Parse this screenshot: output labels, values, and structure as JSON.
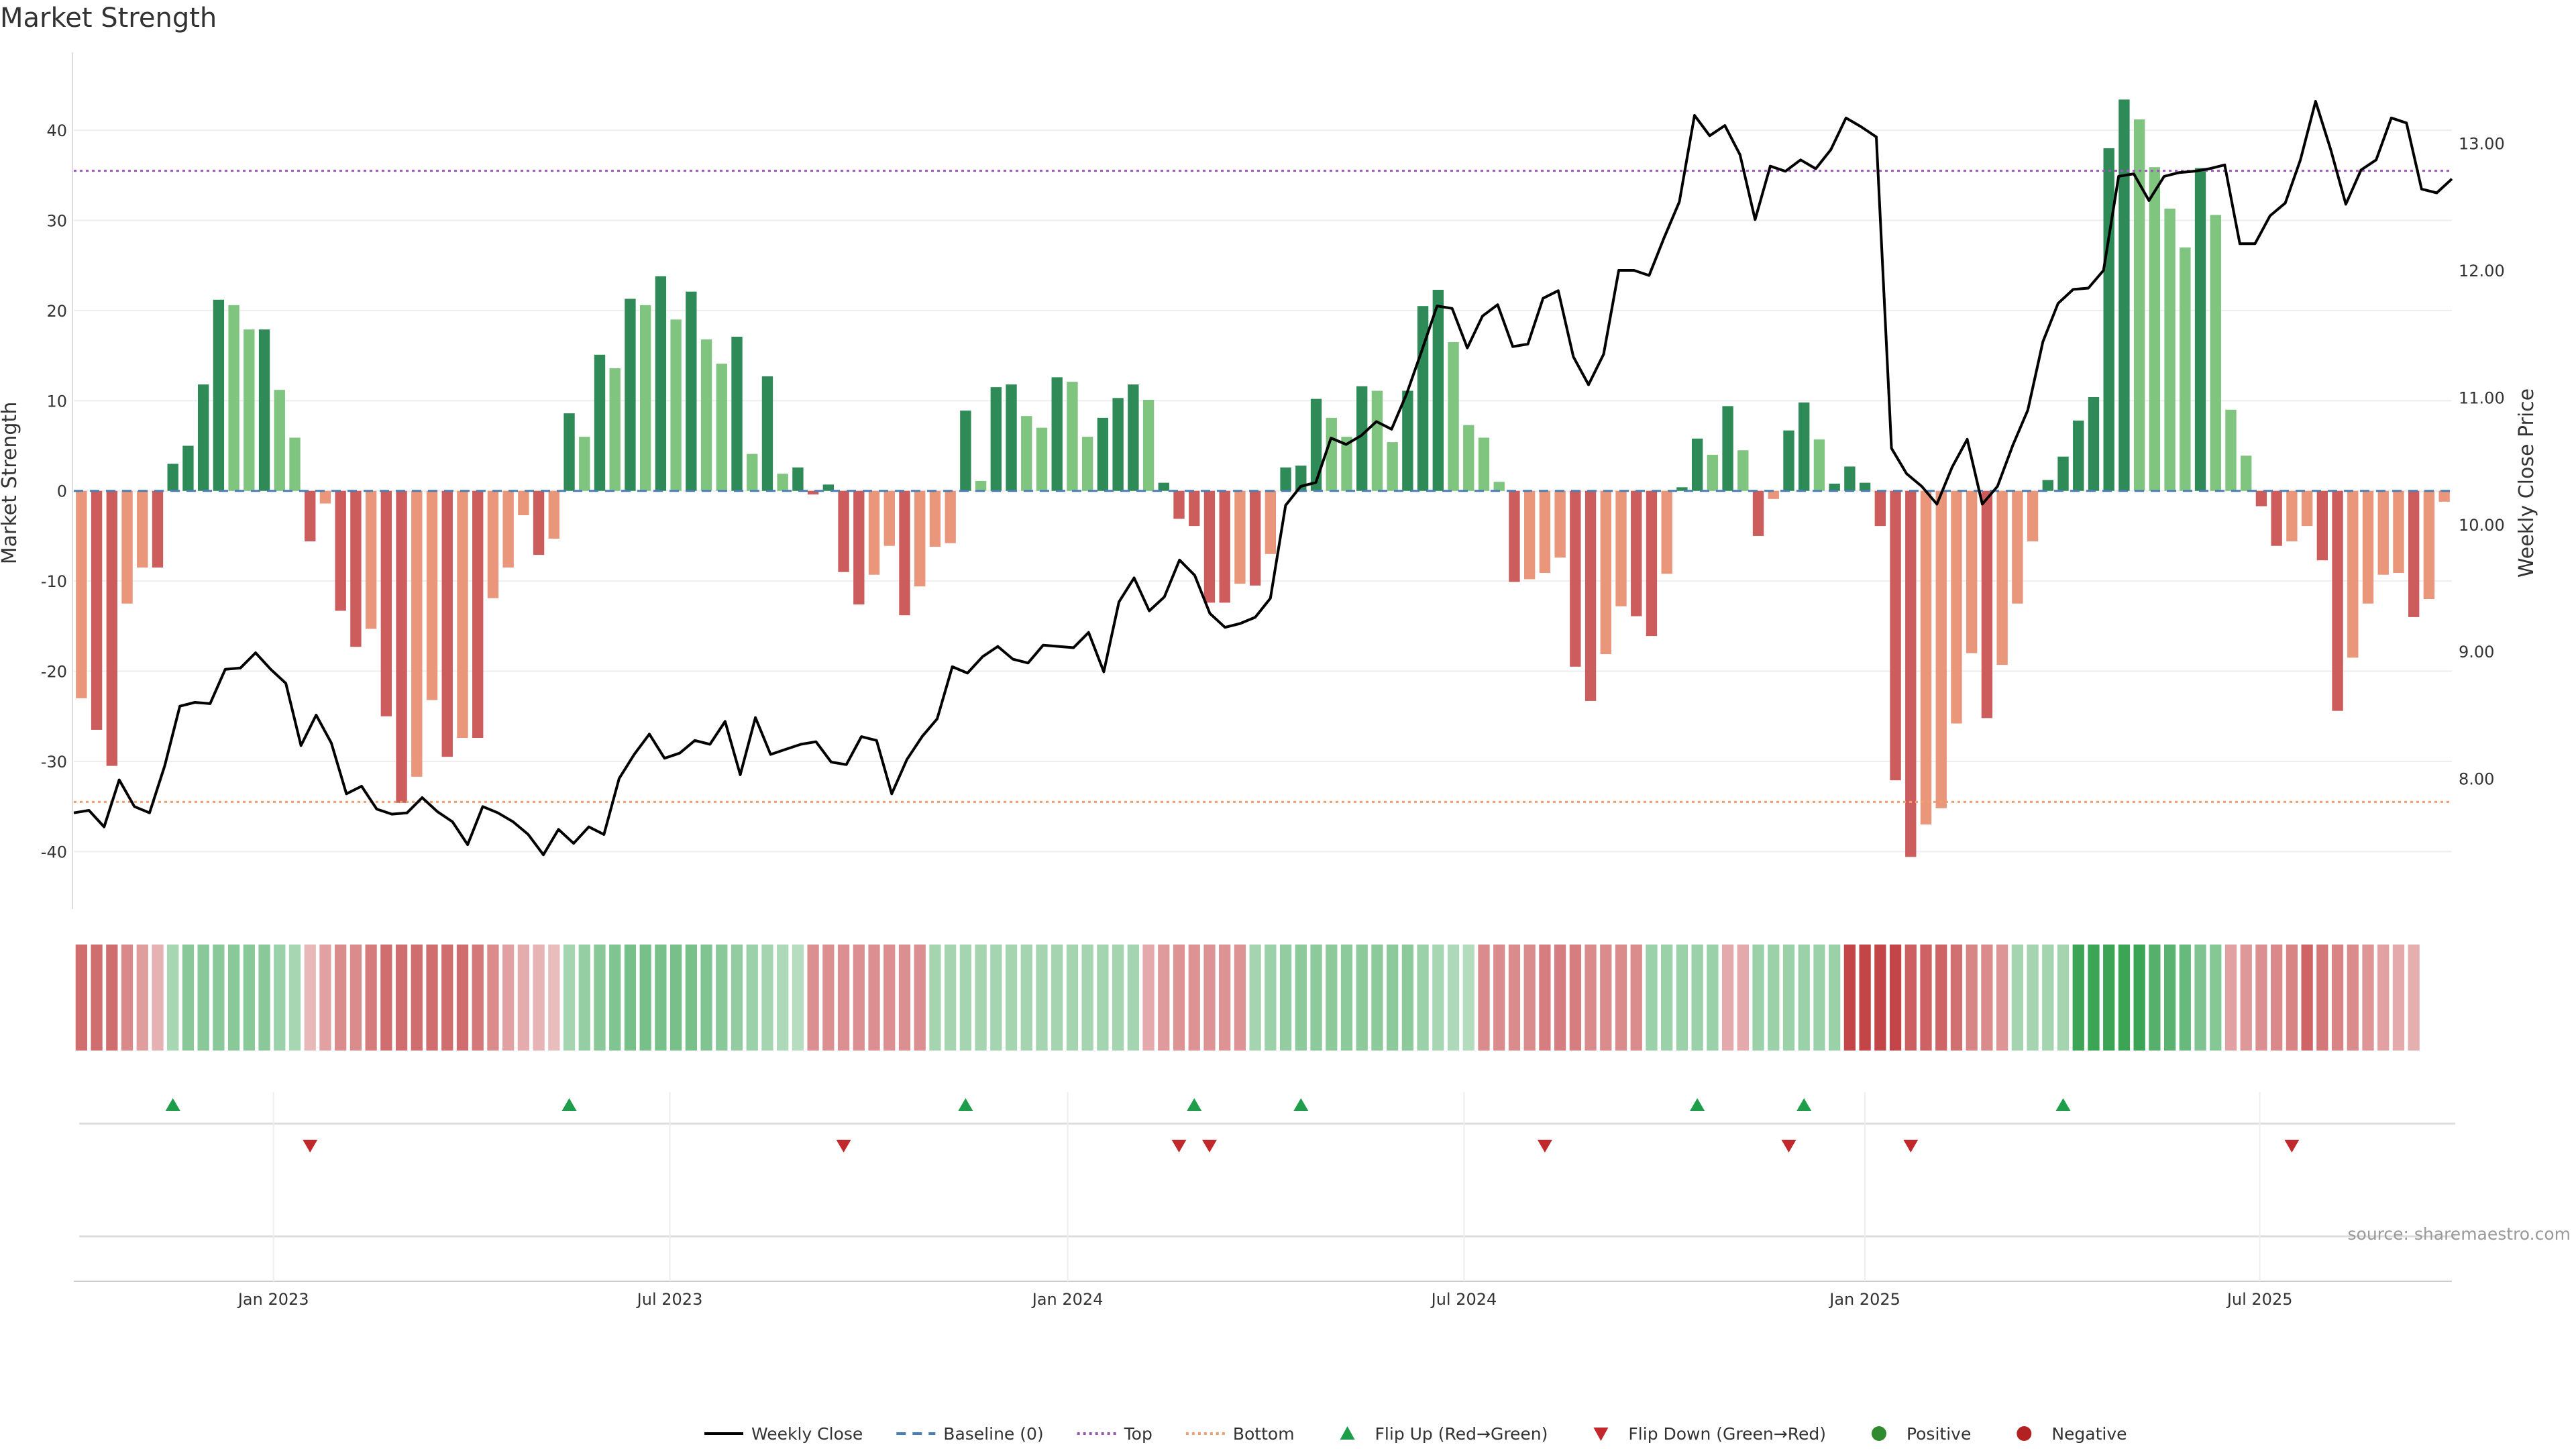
{
  "chart_data": {
    "type": "bar",
    "title": "Market Strength",
    "ylabel": "Market Strength",
    "y2label": "Weekly Close Price",
    "ylim": [
      -46,
      47
    ],
    "y2lim": [
      7.0,
      13.6
    ],
    "y_ticks": [
      -40,
      -30,
      -20,
      -10,
      0,
      10,
      20,
      30,
      40
    ],
    "y2_ticks": [
      "8.00",
      "9.00",
      "10.00",
      "11.00",
      "12.00",
      "13.00"
    ],
    "x_ticks": [
      {
        "label": "Jan 2023",
        "week": 12.6
      },
      {
        "label": "Jul 2023",
        "week": 38.6
      },
      {
        "label": "Jan 2024",
        "week": 64.7
      },
      {
        "label": "Jul 2024",
        "week": 90.7
      },
      {
        "label": "Jan 2025",
        "week": 117.0
      },
      {
        "label": "Jul 2025",
        "week": 142.9
      }
    ],
    "reference_lines": {
      "top": 35.5,
      "bottom": -34.5,
      "baseline": 0
    },
    "colors": {
      "strong_positive": "#2e8b57",
      "weak_positive": "#7fc47f",
      "strong_negative": "#cd5c5c",
      "weak_negative": "#e9967a",
      "close_line": "#000000",
      "baseline": "#4a7fb5",
      "top": "#9b59b6",
      "bottom": "#f0a070",
      "flip_up": "#1e9e4a",
      "flip_down": "#c0282c",
      "positive_dot": "#2e8b2e",
      "negative_dot": "#b22222",
      "grid": "#eeeeee"
    },
    "strength": [
      -23,
      -26.5,
      -30.5,
      -12.5,
      -8.5,
      -8.5,
      3,
      5,
      11.8,
      21.2,
      20.6,
      17.9,
      17.9,
      11.2,
      5.9,
      -5.6,
      -1.4,
      -13.3,
      -17.3,
      -15.3,
      -25,
      -34.6,
      -31.7,
      -23.2,
      -29.5,
      -27.4,
      -27.4,
      -11.9,
      -8.5,
      -2.7,
      -7.1,
      -5.3,
      8.6,
      6,
      15.1,
      13.6,
      21.3,
      20.6,
      23.8,
      19,
      22.1,
      16.8,
      14.1,
      17.1,
      4.1,
      12.7,
      1.9,
      2.6,
      -0.4,
      0.7,
      -9,
      -12.6,
      -9.3,
      -6.1,
      -13.8,
      -10.6,
      -6.2,
      -5.8,
      8.9,
      1.1,
      11.5,
      11.8,
      8.3,
      7,
      12.6,
      12.1,
      6,
      8.1,
      10.3,
      11.8,
      10.1,
      0.9,
      -3.1,
      -3.9,
      -12.4,
      -12.4,
      -10.3,
      -10.5,
      -7,
      2.6,
      2.8,
      10.2,
      8.1,
      6,
      11.6,
      11.1,
      5.4,
      11.1,
      20.5,
      22.3,
      16.5,
      7.3,
      5.9,
      1,
      -10.1,
      -9.8,
      -9.1,
      -7.4,
      -19.5,
      -23.3,
      -18.1,
      -12.8,
      -13.9,
      -16.1,
      -9.2,
      0.4,
      5.8,
      4,
      9.4,
      4.5,
      -5,
      -0.9,
      6.7,
      9.8,
      5.7,
      0.8,
      2.7,
      0.9,
      -3.9,
      -32.1,
      -40.6,
      -37,
      -35.2,
      -25.8,
      -18,
      -25.2,
      -19.3,
      -12.5,
      -5.6,
      1.2,
      3.8,
      7.8,
      10.4,
      38,
      43.4,
      41.2,
      35.9,
      31.3,
      27,
      35.8,
      30.6,
      9,
      3.9,
      -1.7,
      -6.1,
      -5.6,
      -3.9,
      -7.7,
      -24.4,
      -18.5,
      -12.5,
      -9.3,
      -9.1,
      -14,
      -12,
      -1.2
    ],
    "weekly_close": [
      7.73,
      7.75,
      7.62,
      7.99,
      7.78,
      7.73,
      8.1,
      8.57,
      8.6,
      8.59,
      8.86,
      8.87,
      8.99,
      8.86,
      8.75,
      8.26,
      8.5,
      8.28,
      7.88,
      7.94,
      7.76,
      7.72,
      7.73,
      7.85,
      7.74,
      7.66,
      7.48,
      7.78,
      7.73,
      7.66,
      7.56,
      7.4,
      7.6,
      7.49,
      7.62,
      7.56,
      8.0,
      8.19,
      8.35,
      8.16,
      8.2,
      8.3,
      8.27,
      8.45,
      8.03,
      8.48,
      8.19,
      8.23,
      8.27,
      8.29,
      8.13,
      8.11,
      8.33,
      8.3,
      7.88,
      8.15,
      8.33,
      8.47,
      8.88,
      8.83,
      8.96,
      9.04,
      8.94,
      8.91,
      9.05,
      9.04,
      9.03,
      9.15,
      8.84,
      9.39,
      9.58,
      9.32,
      9.43,
      9.72,
      9.6,
      9.3,
      9.19,
      9.22,
      9.27,
      9.42,
      10.15,
      10.3,
      10.33,
      10.68,
      10.63,
      10.7,
      10.81,
      10.75,
      11.03,
      11.37,
      11.72,
      11.7,
      11.39,
      11.64,
      11.73,
      11.4,
      11.42,
      11.78,
      11.84,
      11.32,
      11.1,
      11.34,
      12.0,
      12.0,
      11.96,
      12.26,
      12.54,
      13.22,
      13.06,
      13.14,
      12.91,
      12.4,
      12.82,
      12.78,
      12.87,
      12.8,
      12.95,
      13.2,
      13.13,
      13.05,
      10.6,
      10.4,
      10.3,
      10.16,
      10.45,
      10.67,
      10.16,
      10.3,
      10.62,
      10.9,
      11.44,
      11.74,
      11.85,
      11.86,
      12.0,
      12.74,
      12.76,
      12.55,
      12.74,
      12.77,
      12.78,
      12.8,
      12.83,
      12.21,
      12.21,
      12.43,
      12.53,
      12.87,
      13.33,
      12.95,
      12.52,
      12.79,
      12.87,
      13.2,
      13.16,
      12.64,
      12.61,
      12.72
    ],
    "heat_strip": {
      "levels": [
        -0.72,
        -0.72,
        -0.72,
        -0.52,
        -0.38,
        -0.24,
        0.28,
        0.48,
        0.48,
        0.48,
        0.48,
        0.48,
        0.48,
        0.36,
        0.28,
        -0.2,
        -0.36,
        -0.5,
        -0.5,
        -0.62,
        -0.72,
        -0.72,
        -0.72,
        -0.72,
        -0.72,
        -0.72,
        -0.64,
        -0.5,
        -0.36,
        -0.28,
        -0.22,
        -0.16,
        0.3,
        0.4,
        0.48,
        0.54,
        0.6,
        0.6,
        0.6,
        0.6,
        0.6,
        0.54,
        0.48,
        0.42,
        0.36,
        0.3,
        0.24,
        0.18,
        -0.48,
        -0.48,
        -0.48,
        -0.48,
        -0.48,
        -0.48,
        -0.48,
        -0.48,
        0.3,
        0.3,
        0.3,
        0.3,
        0.3,
        0.3,
        0.3,
        0.3,
        0.3,
        0.3,
        0.3,
        0.3,
        0.3,
        0.3,
        -0.3,
        -0.4,
        -0.45,
        -0.45,
        -0.45,
        -0.45,
        -0.45,
        0.3,
        0.36,
        0.42,
        0.46,
        0.46,
        0.46,
        0.46,
        0.46,
        0.46,
        0.46,
        0.46,
        0.36,
        0.28,
        0.24,
        0.2,
        -0.5,
        -0.5,
        -0.5,
        -0.5,
        -0.6,
        -0.6,
        -0.6,
        -0.5,
        -0.5,
        -0.5,
        -0.5,
        0.36,
        0.36,
        0.36,
        0.36,
        0.36,
        -0.3,
        -0.3,
        0.36,
        0.36,
        0.36,
        0.36,
        0.36,
        0.36,
        -1,
        -1,
        -1,
        -1,
        -0.82,
        -0.8,
        -0.78,
        -0.7,
        -0.55,
        -0.5,
        -0.44,
        0.3,
        0.3,
        0.3,
        0.3,
        1,
        1,
        1,
        1,
        1,
        0.82,
        0.8,
        0.7,
        0.55,
        0.5,
        -0.36,
        -0.42,
        -0.48,
        -0.52,
        -0.56,
        -0.78,
        -0.65,
        -0.56,
        -0.5,
        -0.44,
        -0.36,
        -0.3,
        -0.26
      ]
    },
    "flips_up": [
      6,
      32,
      58,
      73,
      80,
      106,
      113,
      130
    ],
    "flips_down": [
      15,
      50,
      72,
      74,
      96,
      112,
      120,
      145
    ],
    "legend": {
      "weekly_close": "Weekly Close",
      "baseline": "Baseline (0)",
      "top": "Top",
      "bottom": "Bottom",
      "flip_up": "Flip Up (Red→Green)",
      "flip_down": "Flip Down (Green→Red)",
      "positive": "Positive",
      "negative": "Negative"
    },
    "source": "source: sharemaestro.com"
  }
}
